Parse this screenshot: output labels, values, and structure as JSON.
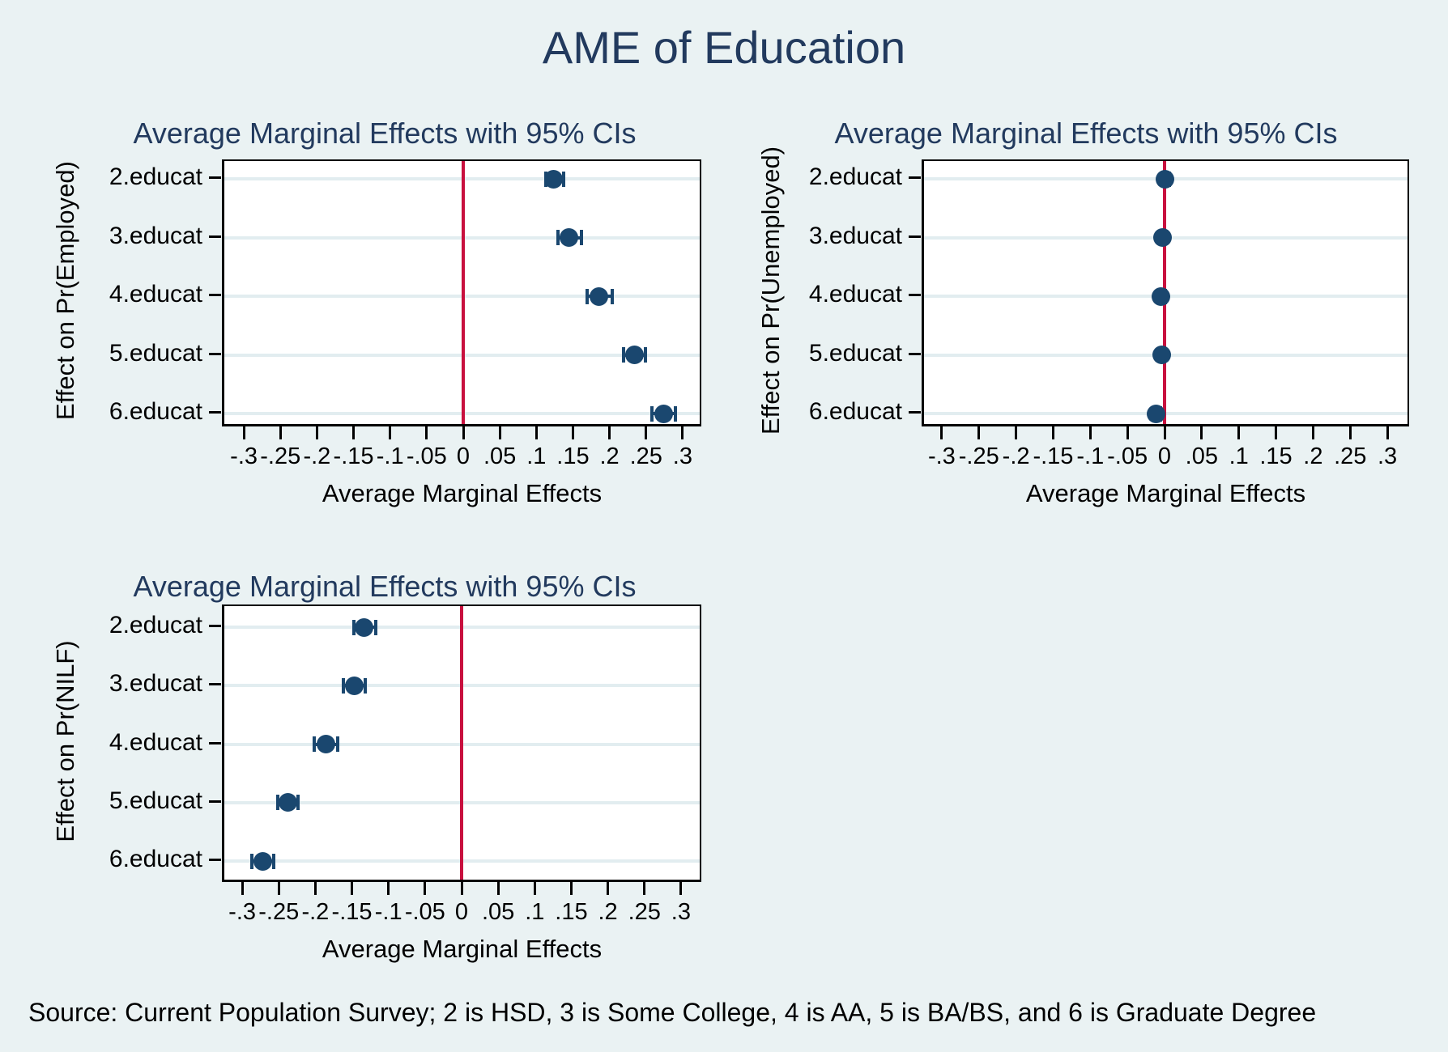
{
  "main_title": "AME of Education",
  "source_note": "Source: Current Population Survey; 2 is HSD, 3 is Some College, 4 is AA, 5 is BA/BS, and 6 is Graduate Degree",
  "colors": {
    "background": "#eaf2f3",
    "plot_background": "#ffffff",
    "title_navy": "#223a5e",
    "marker_navy": "#1a476f",
    "refline_red": "#c8103e",
    "gridline": "#e2edf0",
    "axis": "#000000"
  },
  "chart_data": [
    {
      "type": "scatter",
      "subtype": "coefficient-plot-with-95ci",
      "subtitle": "Average Marginal Effects with 95% CIs",
      "ylabel": "Effect on Pr(Employed)",
      "xlabel": "Average Marginal Effects",
      "categories": [
        "2.educat",
        "3.educat",
        "4.educat",
        "5.educat",
        "6.educat"
      ],
      "estimates": [
        0.124,
        0.145,
        0.186,
        0.234,
        0.274
      ],
      "ci_low": [
        0.112,
        0.129,
        0.169,
        0.219,
        0.258
      ],
      "ci_high": [
        0.137,
        0.161,
        0.203,
        0.249,
        0.29
      ],
      "refline_x": 0,
      "xlim": [
        -0.326,
        0.323
      ],
      "grid": true,
      "xtick_values": [
        -0.3,
        -0.25,
        -0.2,
        -0.15,
        -0.1,
        -0.05,
        0,
        0.05,
        0.1,
        0.15,
        0.2,
        0.25,
        0.3
      ],
      "xtick_labels": [
        "-.3",
        "-.25",
        "-.2",
        "-.15",
        "-.1",
        "-.05",
        "0",
        ".05",
        ".1",
        ".15",
        ".2",
        ".25",
        ".3"
      ]
    },
    {
      "type": "scatter",
      "subtype": "coefficient-plot-with-95ci",
      "subtitle": "Average Marginal Effects with 95% CIs",
      "ylabel": "Effect on Pr(Unemployed)",
      "xlabel": "Average Marginal Effects",
      "categories": [
        "2.educat",
        "3.educat",
        "4.educat",
        "5.educat",
        "6.educat"
      ],
      "estimates": [
        0.001,
        -0.003,
        -0.005,
        -0.004,
        -0.011
      ],
      "ci_low": [
        -0.004,
        -0.008,
        -0.01,
        -0.009,
        -0.016
      ],
      "ci_high": [
        0.006,
        0.002,
        0.0,
        0.001,
        -0.006
      ],
      "refline_x": 0,
      "xlim": [
        -0.324,
        0.327
      ],
      "grid": true,
      "xtick_values": [
        -0.3,
        -0.25,
        -0.2,
        -0.15,
        -0.1,
        -0.05,
        0,
        0.05,
        0.1,
        0.15,
        0.2,
        0.25,
        0.3
      ],
      "xtick_labels": [
        "-.3",
        "-.25",
        "-.2",
        "-.15",
        "-.1",
        "-.05",
        "0",
        ".05",
        ".1",
        ".15",
        ".2",
        ".25",
        ".3"
      ]
    },
    {
      "type": "scatter",
      "subtype": "coefficient-plot-with-95ci",
      "subtitle": "Average Marginal Effects with 95% CIs",
      "ylabel": "Effect on Pr(NILF)",
      "xlabel": "Average Marginal Effects",
      "categories": [
        "2.educat",
        "3.educat",
        "4.educat",
        "5.educat",
        "6.educat"
      ],
      "estimates": [
        -0.133,
        -0.147,
        -0.186,
        -0.238,
        -0.272
      ],
      "ci_low": [
        -0.148,
        -0.162,
        -0.202,
        -0.252,
        -0.287
      ],
      "ci_high": [
        -0.118,
        -0.132,
        -0.17,
        -0.224,
        -0.257
      ],
      "refline_x": 0,
      "xlim": [
        -0.324,
        0.326
      ],
      "grid": true,
      "xtick_values": [
        -0.3,
        -0.25,
        -0.2,
        -0.15,
        -0.1,
        -0.05,
        0,
        0.05,
        0.1,
        0.15,
        0.2,
        0.25,
        0.3
      ],
      "xtick_labels": [
        "-.3",
        "-.25",
        "-.2",
        "-.15",
        "-.1",
        "-.05",
        "0",
        ".05",
        ".1",
        ".15",
        ".2",
        ".25",
        ".3"
      ]
    }
  ]
}
